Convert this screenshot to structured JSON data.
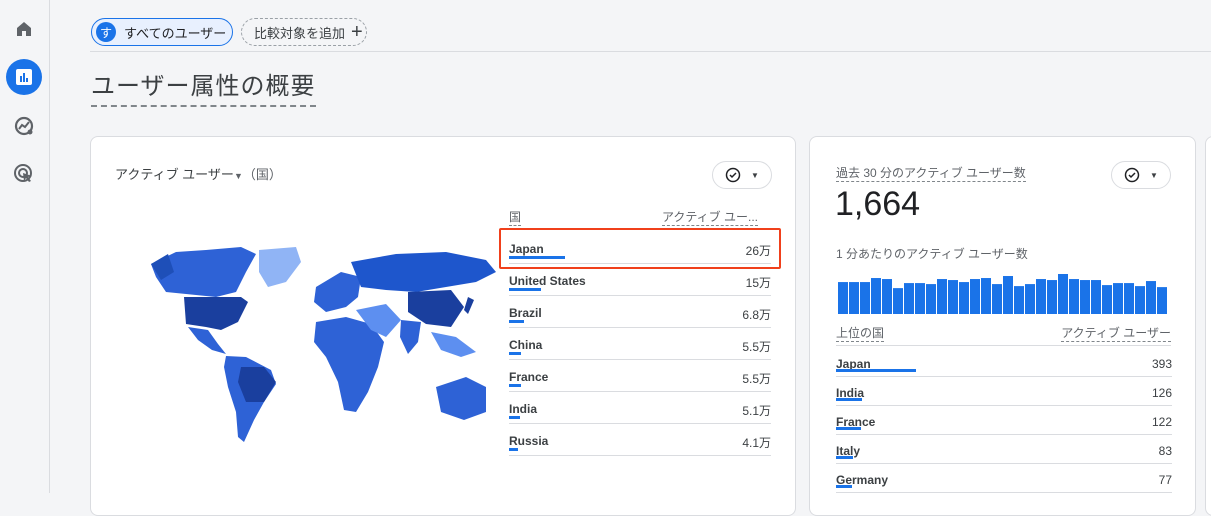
{
  "sidebar": {
    "items": [
      {
        "name": "home",
        "icon": "home-icon"
      },
      {
        "name": "reports",
        "icon": "bar-chart-icon",
        "active": true
      },
      {
        "name": "explore",
        "icon": "explore-trend-icon"
      },
      {
        "name": "advertising",
        "icon": "target-cursor-icon"
      }
    ]
  },
  "comparison": {
    "segment_avatar": "す",
    "segment_label": "すべてのユーザー",
    "add_label": "比較対象を追加"
  },
  "page": {
    "title": "ユーザー属性の概要"
  },
  "country_card": {
    "title": "アクティブ ユーザー",
    "title_suffix": "（国）",
    "col_country": "国",
    "col_users": "アクティブ ユー...",
    "rows": [
      {
        "country": "Japan",
        "value": "26万",
        "share": 1.0
      },
      {
        "country": "United States",
        "value": "15万",
        "share": 0.58
      },
      {
        "country": "Brazil",
        "value": "6.8万",
        "share": 0.26
      },
      {
        "country": "China",
        "value": "5.5万",
        "share": 0.21
      },
      {
        "country": "France",
        "value": "5.5万",
        "share": 0.21
      },
      {
        "country": "India",
        "value": "5.1万",
        "share": 0.2
      },
      {
        "country": "Russia",
        "value": "4.1万",
        "share": 0.16
      }
    ],
    "accent": "#1a73e8",
    "highlight_color": "#f0401b"
  },
  "realtime_card": {
    "title": "過去 30 分のアクティブ ユーザー数",
    "total": "1,664",
    "per_minute_label": "1 分あたりのアクティブ ユーザー数",
    "per_minute_levels": [
      95,
      95,
      95,
      107,
      104,
      77,
      92,
      92,
      89,
      104,
      101,
      95,
      104,
      107,
      89,
      113,
      83,
      89,
      104,
      101,
      119,
      104,
      101,
      101,
      86,
      92,
      92,
      83,
      98,
      80
    ],
    "col_country": "上位の国",
    "col_users": "アクティブ ユーザー",
    "rows": [
      {
        "country": "Japan",
        "value": "393",
        "share": 1.0
      },
      {
        "country": "India",
        "value": "126",
        "share": 0.32
      },
      {
        "country": "France",
        "value": "122",
        "share": 0.31
      },
      {
        "country": "Italy",
        "value": "83",
        "share": 0.21
      },
      {
        "country": "Germany",
        "value": "77",
        "share": 0.2
      }
    ]
  }
}
